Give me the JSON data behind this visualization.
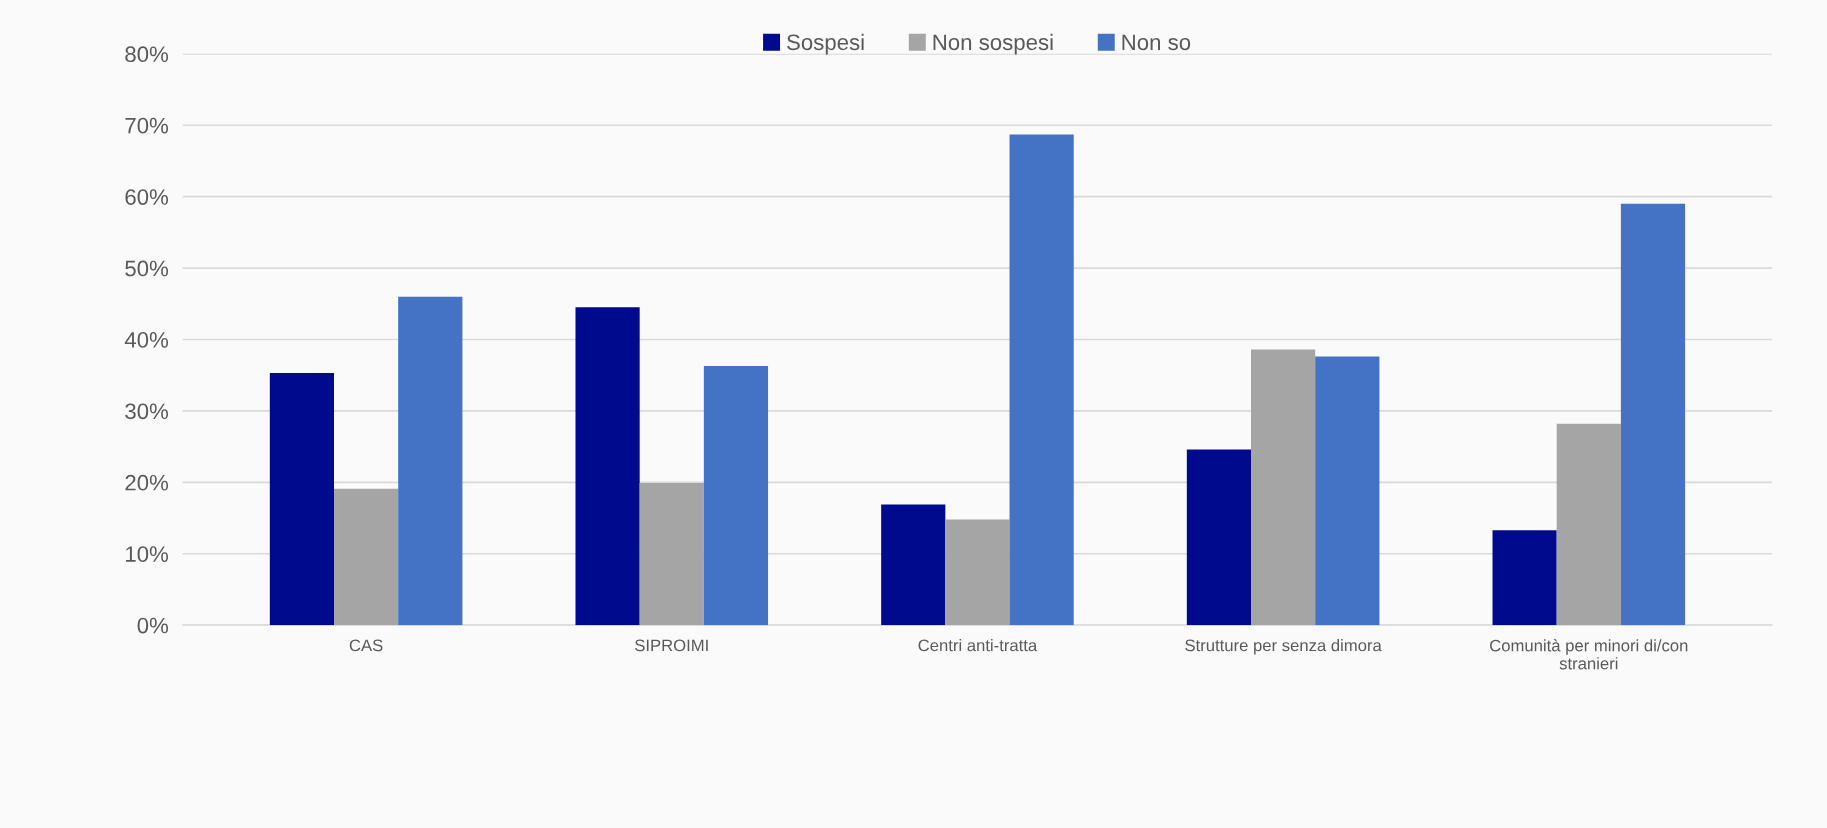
{
  "chart_data": {
    "type": "bar",
    "categories": [
      "CAS",
      "SIPROIMI",
      "Centri anti-tratta",
      "Strutture per senza dimora",
      "Comunità per minori di/con\nstranieri"
    ],
    "series": [
      {
        "name": "Sospesi",
        "color": "#000a8c",
        "values": [
          35.3,
          44.5,
          16.9,
          24.6,
          13.3
        ]
      },
      {
        "name": "Non sospesi",
        "color": "#a5a5a5",
        "values": [
          19.1,
          19.9,
          14.8,
          38.6,
          28.2
        ]
      },
      {
        "name": "Non so",
        "color": "#4472c4",
        "values": [
          46.0,
          36.3,
          68.7,
          37.6,
          59.0
        ]
      }
    ],
    "ylim": [
      0,
      80
    ],
    "yticks": [
      {
        "value": 0,
        "label": "0%"
      },
      {
        "value": 10,
        "label": "10%"
      },
      {
        "value": 20,
        "label": "20%"
      },
      {
        "value": 30,
        "label": "30%"
      },
      {
        "value": 40,
        "label": "40%"
      },
      {
        "value": 50,
        "label": "50%"
      },
      {
        "value": 60,
        "label": "60%"
      },
      {
        "value": 70,
        "label": "70%"
      },
      {
        "value": 80,
        "label": "80%"
      }
    ],
    "grid": "y",
    "legend": "top"
  }
}
